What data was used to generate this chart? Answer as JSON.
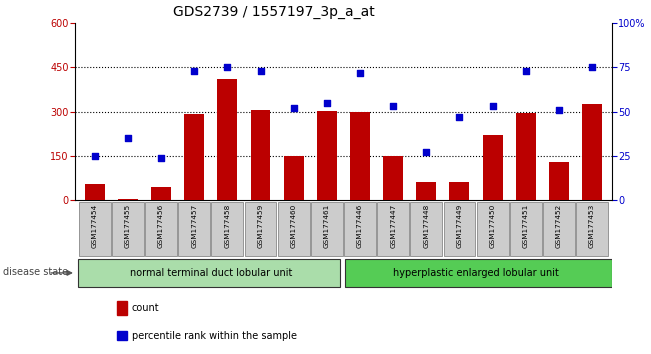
{
  "title": "GDS2739 / 1557197_3p_a_at",
  "samples": [
    "GSM177454",
    "GSM177455",
    "GSM177456",
    "GSM177457",
    "GSM177458",
    "GSM177459",
    "GSM177460",
    "GSM177461",
    "GSM177446",
    "GSM177447",
    "GSM177448",
    "GSM177449",
    "GSM177450",
    "GSM177451",
    "GSM177452",
    "GSM177453"
  ],
  "counts": [
    55,
    5,
    45,
    290,
    410,
    305,
    148,
    302,
    298,
    148,
    60,
    60,
    220,
    295,
    128,
    325
  ],
  "percentiles": [
    25,
    35,
    24,
    73,
    75,
    73,
    52,
    55,
    72,
    53,
    27,
    47,
    53,
    73,
    51,
    75
  ],
  "group1_label": "normal terminal duct lobular unit",
  "group2_label": "hyperplastic enlarged lobular unit",
  "group1_count": 8,
  "group2_count": 8,
  "disease_state_label": "disease state",
  "bar_color": "#bb0000",
  "dot_color": "#0000cc",
  "ylim_left": [
    0,
    600
  ],
  "ylim_right": [
    0,
    100
  ],
  "yticks_left": [
    0,
    150,
    300,
    450,
    600
  ],
  "yticks_right": [
    0,
    25,
    50,
    75,
    100
  ],
  "bg_color": "#ffffff",
  "legend_count_label": "count",
  "legend_pct_label": "percentile rank within the sample",
  "title_fontsize": 10,
  "tick_fontsize": 7,
  "group1_color": "#aaddaa",
  "group2_color": "#55cc55",
  "xticklabel_bg": "#cccccc",
  "border_color": "#888888"
}
